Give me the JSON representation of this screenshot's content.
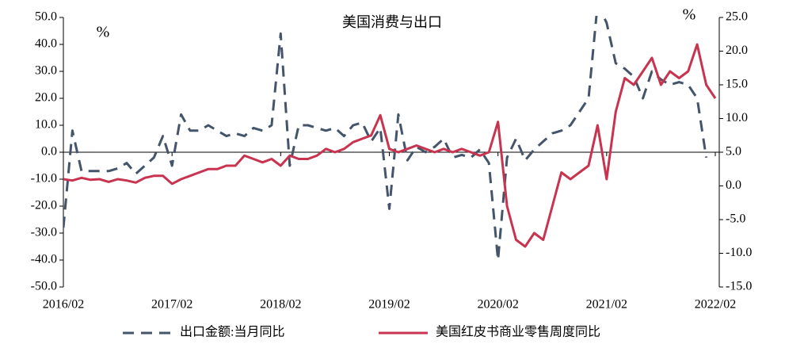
{
  "chart_data": {
    "type": "line",
    "title": "美国消费与出口",
    "annotations": [
      "%",
      "%"
    ],
    "categories": [
      "2016/02",
      null,
      null,
      null,
      null,
      null,
      null,
      null,
      null,
      null,
      null,
      null,
      "2017/02",
      null,
      null,
      null,
      null,
      null,
      null,
      null,
      null,
      null,
      null,
      null,
      "2018/02",
      null,
      null,
      null,
      null,
      null,
      null,
      null,
      null,
      null,
      null,
      null,
      "2019/02",
      null,
      null,
      null,
      null,
      null,
      null,
      null,
      null,
      null,
      null,
      null,
      "2020/02",
      null,
      null,
      null,
      null,
      null,
      null,
      null,
      null,
      null,
      null,
      null,
      "2021/02",
      null,
      null,
      null,
      null,
      null,
      null,
      null,
      null,
      null,
      null,
      null,
      "2022/02"
    ],
    "series": [
      {
        "name": "出口金额:当月同比",
        "color": "#44546a",
        "dash": true,
        "axis": "y",
        "values": [
          -28,
          8,
          -7,
          -7,
          -7,
          -7,
          -6,
          -4,
          -8,
          -5,
          -2,
          6,
          -5,
          14,
          8,
          8,
          10,
          8,
          6,
          7,
          6,
          9,
          8,
          10,
          44,
          -5,
          10,
          10,
          9,
          8,
          9,
          6,
          10,
          11,
          4,
          9,
          -21,
          14,
          -3,
          2,
          0,
          2,
          5,
          -2,
          -1,
          -2,
          1,
          -4,
          -40,
          -2,
          5,
          -3,
          1,
          4,
          7,
          8,
          10,
          15,
          20,
          55,
          48,
          33,
          31,
          28,
          20,
          30,
          27,
          25,
          26,
          25,
          20,
          -2,
          null
        ]
      },
      {
        "name": "美国红皮书商业零售周度同比",
        "color": "#c8344f",
        "dash": false,
        "axis": "y2",
        "values": [
          1.0,
          0.8,
          1.2,
          0.9,
          1.0,
          0.6,
          1.0,
          0.8,
          0.5,
          1.2,
          1.5,
          1.5,
          0.3,
          1.0,
          1.5,
          2.0,
          2.5,
          2.5,
          3.0,
          3.0,
          4.5,
          4.0,
          3.5,
          4.0,
          3.0,
          4.5,
          4.0,
          4.0,
          4.5,
          5.5,
          5.0,
          5.5,
          6.5,
          7.0,
          7.5,
          10.5,
          5.5,
          5.0,
          5.5,
          6.0,
          5.5,
          5.0,
          5.5,
          5.0,
          5.5,
          5.0,
          4.5,
          5.0,
          9.5,
          -3.0,
          -8.0,
          -9.0,
          -7.0,
          -8.0,
          -3.0,
          2.0,
          1.0,
          2.0,
          3.0,
          9.0,
          1.0,
          11.0,
          16.0,
          15.0,
          17.0,
          19.0,
          15.0,
          17.0,
          16.0,
          17.0,
          21.0,
          15.0,
          13.0
        ]
      }
    ],
    "ylim": [
      -50,
      50
    ],
    "yticks": [
      {
        "value": 50,
        "label": "50.0"
      },
      {
        "value": 40,
        "label": "40.0"
      },
      {
        "value": 30,
        "label": "30.0"
      },
      {
        "value": 20,
        "label": "20.0"
      },
      {
        "value": 10,
        "label": "10.0"
      },
      {
        "value": 0,
        "label": "0.0"
      },
      {
        "value": -10,
        "label": "-10.0"
      },
      {
        "value": -20,
        "label": "-20.0"
      },
      {
        "value": -30,
        "label": "-30.0"
      },
      {
        "value": -40,
        "label": "-40.0"
      },
      {
        "value": -50,
        "label": "-50.0"
      }
    ],
    "y2lim": [
      -15,
      25
    ],
    "y2ticks": [
      {
        "value": 25,
        "label": "25.0"
      },
      {
        "value": 20,
        "label": "20.0"
      },
      {
        "value": 15,
        "label": "15.0"
      },
      {
        "value": 10,
        "label": "10.0"
      },
      {
        "value": 5,
        "label": "5.0"
      },
      {
        "value": 0,
        "label": "0.0"
      },
      {
        "value": -5,
        "label": "-5.0"
      },
      {
        "value": -10,
        "label": "-10.0"
      },
      {
        "value": -15,
        "label": "-15.0"
      }
    ],
    "legend": "bottom"
  }
}
